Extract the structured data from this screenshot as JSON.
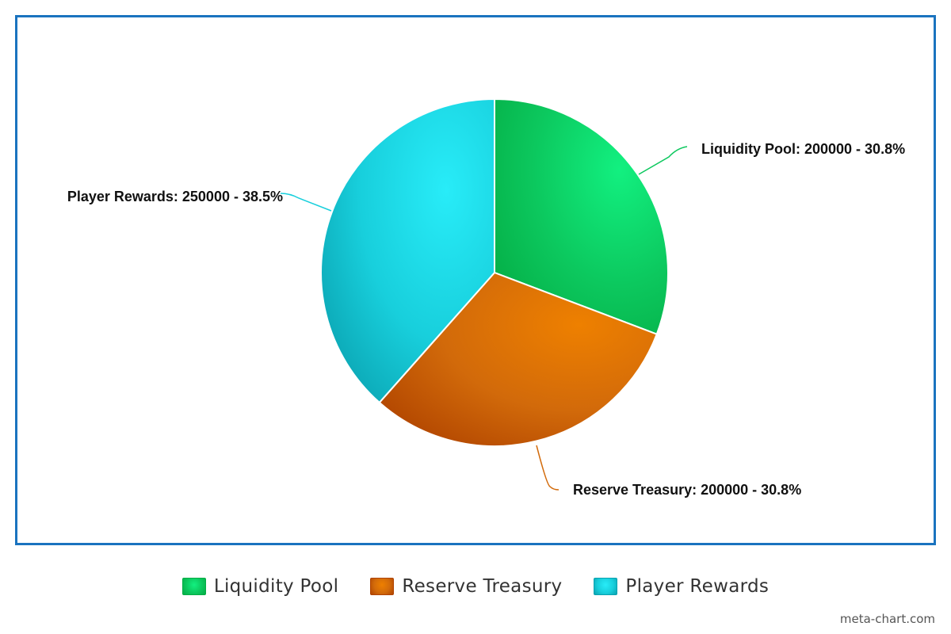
{
  "chart_data": {
    "type": "pie",
    "title": "",
    "slices": [
      {
        "name": "Liquidity Pool",
        "value": 200000,
        "percent": "30.8%",
        "label": "Liquidity Pool: 200000 - 30.8%",
        "color": "#0cc85e",
        "color_light": "#12f080",
        "color_dark": "#04ad45"
      },
      {
        "name": "Reserve Treasury",
        "value": 200000,
        "percent": "30.8%",
        "label": "Reserve Treasury: 200000 - 30.8%",
        "color": "#d26a0a",
        "color_light": "#ee8000",
        "color_dark": "#b04400"
      },
      {
        "name": "Player Rewards",
        "value": 250000,
        "percent": "38.5%",
        "label": "Player Rewards: 250000 - 38.5%",
        "color": "#18cfdc",
        "color_light": "#28ecf8",
        "color_dark": "#0aa2b0"
      }
    ],
    "legend": {
      "placement": "bottom",
      "entries": [
        "Liquidity Pool",
        "Reserve Treasury",
        "Player Rewards"
      ]
    }
  },
  "watermark": "meta-chart.com"
}
